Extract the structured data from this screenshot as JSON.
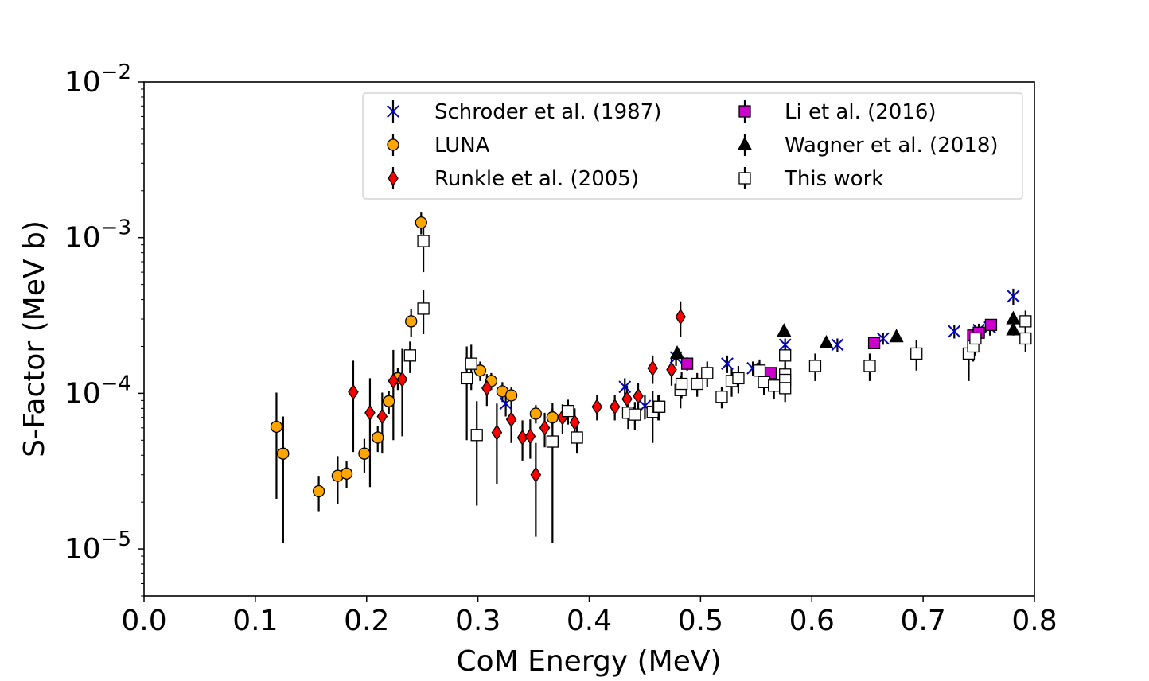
{
  "chart_data": {
    "type": "scatter",
    "xlabel": "CoM Energy (MeV)",
    "ylabel": "S-Factor (MeV b)",
    "xlim": [
      0.0,
      0.8
    ],
    "ylim": [
      5e-06,
      0.01
    ],
    "yscale": "log",
    "x_ticks": [
      "0.0",
      "0.1",
      "0.2",
      "0.3",
      "0.4",
      "0.5",
      "0.6",
      "0.7",
      "0.8"
    ],
    "y_ticks": [
      {
        "value": 1e-05,
        "base": "10",
        "exp": "−5"
      },
      {
        "value": 0.0001,
        "base": "10",
        "exp": "−4"
      },
      {
        "value": 0.001,
        "base": "10",
        "exp": "−3"
      },
      {
        "value": 0.01,
        "base": "10",
        "exp": "−2"
      }
    ],
    "grid": false,
    "legend_position": "top-right",
    "series": [
      {
        "name": "Schroder et al. (1987)",
        "marker": "x",
        "color": "#0000cc",
        "x": [
          0.325,
          0.432,
          0.45,
          0.478,
          0.524,
          0.547,
          0.576,
          0.623,
          0.664,
          0.728,
          0.75,
          0.76,
          0.781
        ],
        "y": [
          8.6e-05,
          0.00011,
          8.3e-05,
          0.00017,
          0.000155,
          0.000145,
          0.000205,
          0.000205,
          0.000225,
          0.00025,
          0.000255,
          0.000265,
          0.00042
        ],
        "err": [
          1.5e-05,
          1.5e-05,
          1.5e-05,
          2e-05,
          2e-05,
          1.5e-05,
          2e-05,
          2e-05,
          2e-05,
          2.5e-05,
          2.5e-05,
          3e-05,
          5e-05
        ]
      },
      {
        "name": "LUNA",
        "marker": "circle",
        "color": "#ffa500",
        "x": [
          0.119,
          0.125,
          0.157,
          0.174,
          0.182,
          0.198,
          0.21,
          0.22,
          0.228,
          0.24,
          0.249,
          0.302,
          0.312,
          0.322,
          0.33,
          0.352,
          0.367
        ],
        "y": [
          6.1e-05,
          4.1e-05,
          2.35e-05,
          2.95e-05,
          3.05e-05,
          4.1e-05,
          5.2e-05,
          8.9e-05,
          0.000125,
          0.00029,
          0.00125,
          0.00014,
          0.00012,
          0.000103,
          9.7e-05,
          7.4e-05,
          7e-05
        ],
        "err": [
          4e-05,
          3e-05,
          6e-06,
          1e-05,
          6e-06,
          1e-05,
          1e-05,
          1.5e-05,
          2e-05,
          6e-05,
          0.0002,
          2e-05,
          1.5e-05,
          1.5e-05,
          1.2e-05,
          1e-05,
          1e-05
        ]
      },
      {
        "name": "Runkle et al. (2005)",
        "marker": "diamond",
        "color": "#ff0000",
        "x": [
          0.188,
          0.203,
          0.214,
          0.224,
          0.232,
          0.308,
          0.317,
          0.33,
          0.34,
          0.347,
          0.352,
          0.36,
          0.376,
          0.387,
          0.407,
          0.423,
          0.434,
          0.444,
          0.457,
          0.474,
          0.482
        ],
        "y": [
          0.000102,
          7.5e-05,
          7.1e-05,
          0.00012,
          0.000123,
          0.000108,
          5.6e-05,
          6.8e-05,
          5.2e-05,
          5.3e-05,
          3e-05,
          6e-05,
          7e-05,
          6.5e-05,
          8.2e-05,
          8.2e-05,
          9.2e-05,
          9.6e-05,
          0.000145,
          0.000142,
          0.00031
        ],
        "err": [
          6e-05,
          5e-05,
          3e-05,
          7e-05,
          7e-05,
          2.5e-05,
          3e-05,
          2e-05,
          1.5e-05,
          1.5e-05,
          1.8e-05,
          1.5e-05,
          1.5e-05,
          1.5e-05,
          1.5e-05,
          1.5e-05,
          2e-05,
          2e-05,
          3e-05,
          3e-05,
          8e-05
        ]
      },
      {
        "name": "Li et al. (2016)",
        "marker": "square",
        "color": "#cc00cc",
        "x": [
          0.488,
          0.563,
          0.656,
          0.745,
          0.75,
          0.761
        ],
        "y": [
          0.000155,
          0.000135,
          0.00021,
          0.000235,
          0.000245,
          0.000275
        ],
        "err": [
          1.5e-05,
          1.2e-05,
          1.5e-05,
          2e-05,
          2e-05,
          2.2e-05
        ]
      },
      {
        "name": "Wagner et al. (2018)",
        "marker": "triangle",
        "color": "#000000",
        "x": [
          0.479,
          0.575,
          0.613,
          0.676,
          0.781,
          0.781
        ],
        "y": [
          0.00018,
          0.00025,
          0.00021,
          0.00023,
          0.0003,
          0.000255
        ],
        "err": [
          1.5e-05,
          2e-05,
          1.5e-05,
          1.5e-05,
          2e-05,
          2e-05
        ]
      },
      {
        "name": "This work",
        "marker": "square",
        "color": "#ffffff",
        "x": [
          0.239,
          0.251,
          0.251,
          0.29,
          0.294,
          0.299,
          0.367,
          0.381,
          0.389,
          0.435,
          0.441,
          0.457,
          0.462,
          0.463,
          0.482,
          0.483,
          0.497,
          0.506,
          0.519,
          0.528,
          0.534,
          0.553,
          0.557,
          0.566,
          0.576,
          0.576,
          0.576,
          0.576,
          0.603,
          0.652,
          0.694,
          0.741,
          0.745,
          0.747,
          0.792,
          0.792
        ],
        "y": [
          0.000175,
          0.00035,
          0.00095,
          0.000125,
          0.000155,
          5.4e-05,
          4.9e-05,
          7.7e-05,
          5.2e-05,
          7.5e-05,
          7.3e-05,
          7.6e-05,
          8.2e-05,
          8.2e-05,
          0.000105,
          0.000115,
          0.000115,
          0.000135,
          9.5e-05,
          0.00012,
          0.000125,
          0.00014,
          0.000118,
          0.000112,
          0.000175,
          0.000132,
          0.000122,
          0.000108,
          0.00015,
          0.00015,
          0.00018,
          0.00018,
          0.0002,
          0.000225,
          0.000225,
          0.00029
        ],
        "err": [
          4e-05,
          0.00011,
          0.00035,
          7.5e-05,
          5e-05,
          3.5e-05,
          3.8e-05,
          1.4e-05,
          1.1e-05,
          1.6e-05,
          1.5e-05,
          2.8e-05,
          1.5e-05,
          1.5e-05,
          2.5e-05,
          2.2e-05,
          2e-05,
          2.5e-05,
          1.5e-05,
          2.5e-05,
          2.5e-05,
          2.5e-05,
          2e-05,
          2e-05,
          3e-05,
          2.5e-05,
          2.5e-05,
          2e-05,
          3e-05,
          3e-05,
          4e-05,
          6e-05,
          4e-05,
          5e-05,
          4e-05,
          5e-05
        ]
      }
    ]
  }
}
